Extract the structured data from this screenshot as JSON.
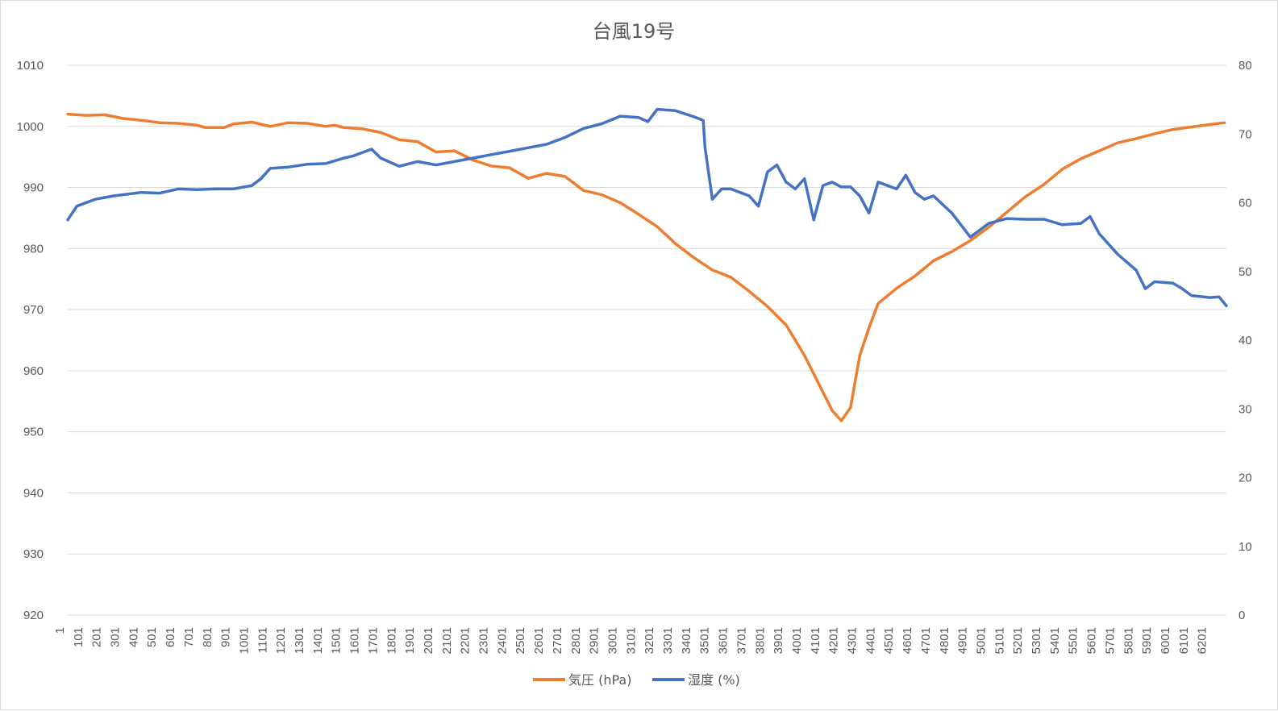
{
  "chart_data": {
    "type": "line",
    "title": "台風19号",
    "xlabel": "",
    "ylabel": "",
    "y_left": {
      "min": 920,
      "max": 1010,
      "step": 10,
      "ticks": [
        "920",
        "930",
        "940",
        "950",
        "960",
        "970",
        "980",
        "990",
        "1000",
        "1010"
      ]
    },
    "y_right": {
      "min": 0,
      "max": 80,
      "step": 10,
      "ticks": [
        "0",
        "10",
        "20",
        "30",
        "40",
        "50",
        "60",
        "70",
        "80"
      ]
    },
    "x_range": [
      1,
      6290
    ],
    "x_tick_labels": [
      "1",
      "101",
      "201",
      "301",
      "401",
      "501",
      "601",
      "701",
      "801",
      "901",
      "1001",
      "1101",
      "1201",
      "1301",
      "1401",
      "1501",
      "1601",
      "1701",
      "1801",
      "1901",
      "2001",
      "2101",
      "2201",
      "2301",
      "2401",
      "2501",
      "2601",
      "2701",
      "2801",
      "2901",
      "3001",
      "3101",
      "3201",
      "3301",
      "3401",
      "3501",
      "3601",
      "3701",
      "3801",
      "3901",
      "4001",
      "4101",
      "4201",
      "4301",
      "4401",
      "4501",
      "4601",
      "4701",
      "4801",
      "4901",
      "5001",
      "5101",
      "5201",
      "5301",
      "5401",
      "5501",
      "5601",
      "5701",
      "5801",
      "5901",
      "6001",
      "6101",
      "6201"
    ],
    "grid": true,
    "legend_position": "bottom",
    "series": [
      {
        "name": "気圧 (hPa)",
        "axis": "left",
        "color": "#ED7D31",
        "points": [
          [
            1,
            1002
          ],
          [
            100,
            1001.8
          ],
          [
            200,
            1001.9
          ],
          [
            300,
            1001.3
          ],
          [
            400,
            1001
          ],
          [
            500,
            1000.6
          ],
          [
            600,
            1000.5
          ],
          [
            700,
            1000.2
          ],
          [
            750,
            999.8
          ],
          [
            850,
            999.8
          ],
          [
            900,
            1000.4
          ],
          [
            1000,
            1000.7
          ],
          [
            1100,
            1000
          ],
          [
            1200,
            1000.6
          ],
          [
            1300,
            1000.5
          ],
          [
            1400,
            1000
          ],
          [
            1450,
            1000.2
          ],
          [
            1500,
            999.8
          ],
          [
            1600,
            999.6
          ],
          [
            1700,
            999
          ],
          [
            1800,
            997.8
          ],
          [
            1900,
            997.5
          ],
          [
            2000,
            995.8
          ],
          [
            2100,
            996
          ],
          [
            2200,
            994.5
          ],
          [
            2300,
            993.5
          ],
          [
            2400,
            993.2
          ],
          [
            2500,
            991.5
          ],
          [
            2600,
            992.3
          ],
          [
            2700,
            991.8
          ],
          [
            2800,
            989.5
          ],
          [
            2900,
            988.8
          ],
          [
            3000,
            987.5
          ],
          [
            3100,
            985.6
          ],
          [
            3200,
            983.6
          ],
          [
            3300,
            980.8
          ],
          [
            3400,
            978.5
          ],
          [
            3500,
            976.5
          ],
          [
            3600,
            975.3
          ],
          [
            3700,
            973
          ],
          [
            3800,
            970.5
          ],
          [
            3900,
            967.5
          ],
          [
            4000,
            962.5
          ],
          [
            4100,
            956.5
          ],
          [
            4150,
            953.5
          ],
          [
            4200,
            951.8
          ],
          [
            4250,
            954
          ],
          [
            4300,
            962.5
          ],
          [
            4350,
            967
          ],
          [
            4400,
            971
          ],
          [
            4500,
            973.5
          ],
          [
            4600,
            975.5
          ],
          [
            4700,
            978
          ],
          [
            4800,
            979.5
          ],
          [
            4900,
            981.3
          ],
          [
            5000,
            983.5
          ],
          [
            5100,
            986
          ],
          [
            5200,
            988.5
          ],
          [
            5300,
            990.5
          ],
          [
            5400,
            993
          ],
          [
            5500,
            994.7
          ],
          [
            5600,
            996
          ],
          [
            5700,
            997.3
          ],
          [
            5800,
            998
          ],
          [
            5900,
            998.8
          ],
          [
            6000,
            999.5
          ],
          [
            6100,
            999.9
          ],
          [
            6200,
            1000.3
          ],
          [
            6280,
            1000.6
          ]
        ]
      },
      {
        "name": "湿度 (%)",
        "axis": "right",
        "color": "#4472C4",
        "points": [
          [
            1,
            57.5
          ],
          [
            50,
            59.5
          ],
          [
            150,
            60.5
          ],
          [
            250,
            61
          ],
          [
            400,
            61.5
          ],
          [
            500,
            61.4
          ],
          [
            600,
            62
          ],
          [
            700,
            61.9
          ],
          [
            800,
            62
          ],
          [
            900,
            62
          ],
          [
            1000,
            62.5
          ],
          [
            1050,
            63.5
          ],
          [
            1100,
            65
          ],
          [
            1200,
            65.2
          ],
          [
            1300,
            65.6
          ],
          [
            1400,
            65.7
          ],
          [
            1500,
            66.5
          ],
          [
            1550,
            66.8
          ],
          [
            1650,
            67.8
          ],
          [
            1700,
            66.5
          ],
          [
            1800,
            65.3
          ],
          [
            1900,
            66
          ],
          [
            2000,
            65.5
          ],
          [
            2100,
            66
          ],
          [
            2200,
            66.5
          ],
          [
            2300,
            67
          ],
          [
            2400,
            67.5
          ],
          [
            2500,
            68
          ],
          [
            2600,
            68.5
          ],
          [
            2700,
            69.5
          ],
          [
            2800,
            70.8
          ],
          [
            2900,
            71.5
          ],
          [
            3000,
            72.6
          ],
          [
            3100,
            72.4
          ],
          [
            3150,
            71.8
          ],
          [
            3200,
            73.6
          ],
          [
            3300,
            73.4
          ],
          [
            3400,
            72.5
          ],
          [
            3450,
            72
          ],
          [
            3460,
            68
          ],
          [
            3500,
            60.5
          ],
          [
            3550,
            62
          ],
          [
            3600,
            62
          ],
          [
            3700,
            61
          ],
          [
            3750,
            59.5
          ],
          [
            3800,
            64.5
          ],
          [
            3850,
            65.5
          ],
          [
            3900,
            63
          ],
          [
            3950,
            62
          ],
          [
            4000,
            63.5
          ],
          [
            4050,
            57.5
          ],
          [
            4100,
            62.5
          ],
          [
            4150,
            63
          ],
          [
            4200,
            62.3
          ],
          [
            4250,
            62.3
          ],
          [
            4300,
            61
          ],
          [
            4350,
            58.5
          ],
          [
            4400,
            63
          ],
          [
            4450,
            62.5
          ],
          [
            4500,
            62
          ],
          [
            4550,
            64
          ],
          [
            4600,
            61.5
          ],
          [
            4650,
            60.5
          ],
          [
            4700,
            61
          ],
          [
            4800,
            58.5
          ],
          [
            4900,
            55
          ],
          [
            5000,
            57
          ],
          [
            5100,
            57.7
          ],
          [
            5200,
            57.6
          ],
          [
            5300,
            57.6
          ],
          [
            5400,
            56.8
          ],
          [
            5500,
            57
          ],
          [
            5550,
            58
          ],
          [
            5600,
            55.5
          ],
          [
            5700,
            52.5
          ],
          [
            5800,
            50.2
          ],
          [
            5850,
            47.5
          ],
          [
            5900,
            48.5
          ],
          [
            6000,
            48.3
          ],
          [
            6050,
            47.5
          ],
          [
            6100,
            46.5
          ],
          [
            6200,
            46.2
          ],
          [
            6250,
            46.3
          ],
          [
            6290,
            45
          ]
        ]
      }
    ]
  }
}
